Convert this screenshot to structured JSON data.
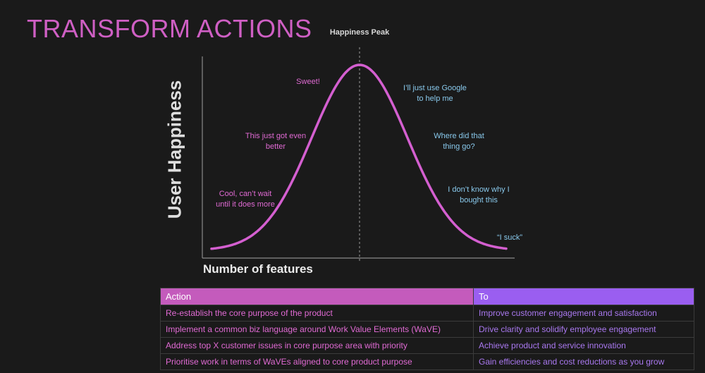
{
  "slide": {
    "title": "TRANSFORM ACTIONS"
  },
  "diagram": {
    "peak_label": "Happiness Peak",
    "y_axis_label": "User Happiness",
    "x_axis_label": "Number of features",
    "curve_color": "#d45fd0",
    "rising_color": "#e06ad3",
    "falling_color": "#89c9ec",
    "annotations_rising": [
      {
        "line1": "Cool, can’t wait",
        "line2": "until it does more"
      },
      {
        "line1": "This just got even",
        "line2": "better"
      },
      {
        "line1": "Sweet!",
        "line2": ""
      }
    ],
    "annotations_falling": [
      {
        "line1": "I’ll just use Google",
        "line2": "to help me"
      },
      {
        "line1": "Where did that",
        "line2": "thing go?"
      },
      {
        "line1": "I don’t know why I",
        "line2": "bought this"
      },
      {
        "line1": "“I suck”",
        "line2": ""
      }
    ]
  },
  "table": {
    "headers": [
      "Action",
      "To"
    ],
    "header_colors": [
      "#c45bbc",
      "#9a5ef0"
    ],
    "rows": [
      [
        "Re-establish the core purpose of the product",
        "Improve customer engagement and satisfaction"
      ],
      [
        "Implement a common biz language around Work Value Elements (WaVE)",
        "Drive clarity and solidify employee engagement"
      ],
      [
        "Address top X customer issues in core purpose area with priority",
        "Achieve product and service innovation"
      ],
      [
        "Prioritise work in terms of WaVEs aligned to core product purpose",
        "Gain efficiencies and cost reductions as you grow"
      ]
    ]
  }
}
